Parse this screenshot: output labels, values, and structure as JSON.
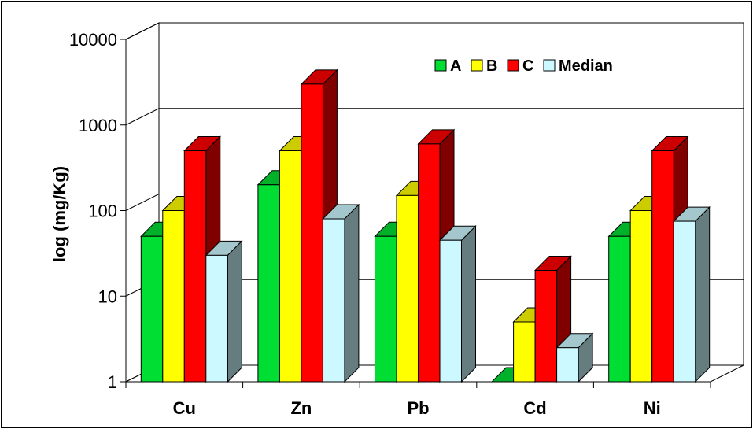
{
  "chart_data": {
    "type": "bar",
    "style": "3d-clustered",
    "ylabel": "log (mg/Kg)",
    "yscale": "log",
    "ylim": [
      1,
      10000
    ],
    "yticks": [
      "1",
      "10",
      "100",
      "1000",
      "10000"
    ],
    "grid": true,
    "legend": "top-right",
    "categories": [
      "Cu",
      "Zn",
      "Pb",
      "Cd",
      "Ni"
    ],
    "series": [
      {
        "name": "A",
        "color": "#00dd33",
        "values": [
          50,
          200,
          50,
          1,
          50
        ]
      },
      {
        "name": "B",
        "color": "#ffff00",
        "values": [
          100,
          500,
          150,
          5,
          100
        ]
      },
      {
        "name": "C",
        "color": "#ff0000",
        "values": [
          500,
          3000,
          600,
          20,
          500
        ]
      },
      {
        "name": "Median",
        "color": "#ccf9ff",
        "values": [
          30,
          80,
          45,
          2.5,
          75
        ]
      }
    ]
  }
}
